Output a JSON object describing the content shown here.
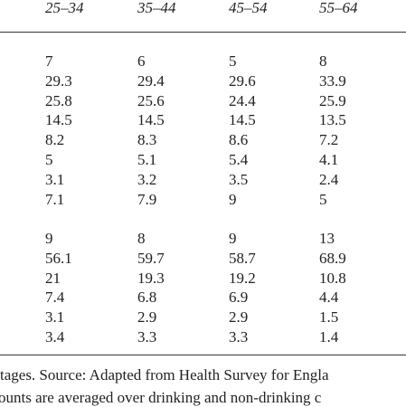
{
  "table": {
    "header": [
      "25–34",
      "35–44",
      "45–54",
      "55–64"
    ],
    "groups": [
      [
        [
          "7",
          "6",
          "5",
          "8"
        ],
        [
          "29.3",
          "29.4",
          "29.6",
          "33.9"
        ],
        [
          "25.8",
          "25.6",
          "24.4",
          "25.9"
        ],
        [
          "14.5",
          "14.5",
          "14.5",
          "13.5"
        ],
        [
          "8.2",
          "8.3",
          "8.6",
          "7.2"
        ],
        [
          "5",
          "5.1",
          "5.4",
          "4.1"
        ],
        [
          "3.1",
          "3.2",
          "3.5",
          "2.4"
        ],
        [
          "7.1",
          "7.9",
          "9",
          "5"
        ]
      ],
      [
        [
          "9",
          "8",
          "9",
          "13"
        ],
        [
          "56.1",
          "59.7",
          "58.7",
          "68.9"
        ],
        [
          "21",
          "19.3",
          "19.2",
          "10.8"
        ],
        [
          "7.4",
          "6.8",
          "6.9",
          "4.4"
        ],
        [
          "3.1",
          "2.9",
          "2.9",
          "1.5"
        ],
        [
          "3.4",
          "3.3",
          "3.3",
          "1.4"
        ]
      ]
    ]
  },
  "footnote": [
    "tages. Source: Adapted from Health Survey for Engla",
    "ounts are averaged over drinking and non-drinking c"
  ]
}
